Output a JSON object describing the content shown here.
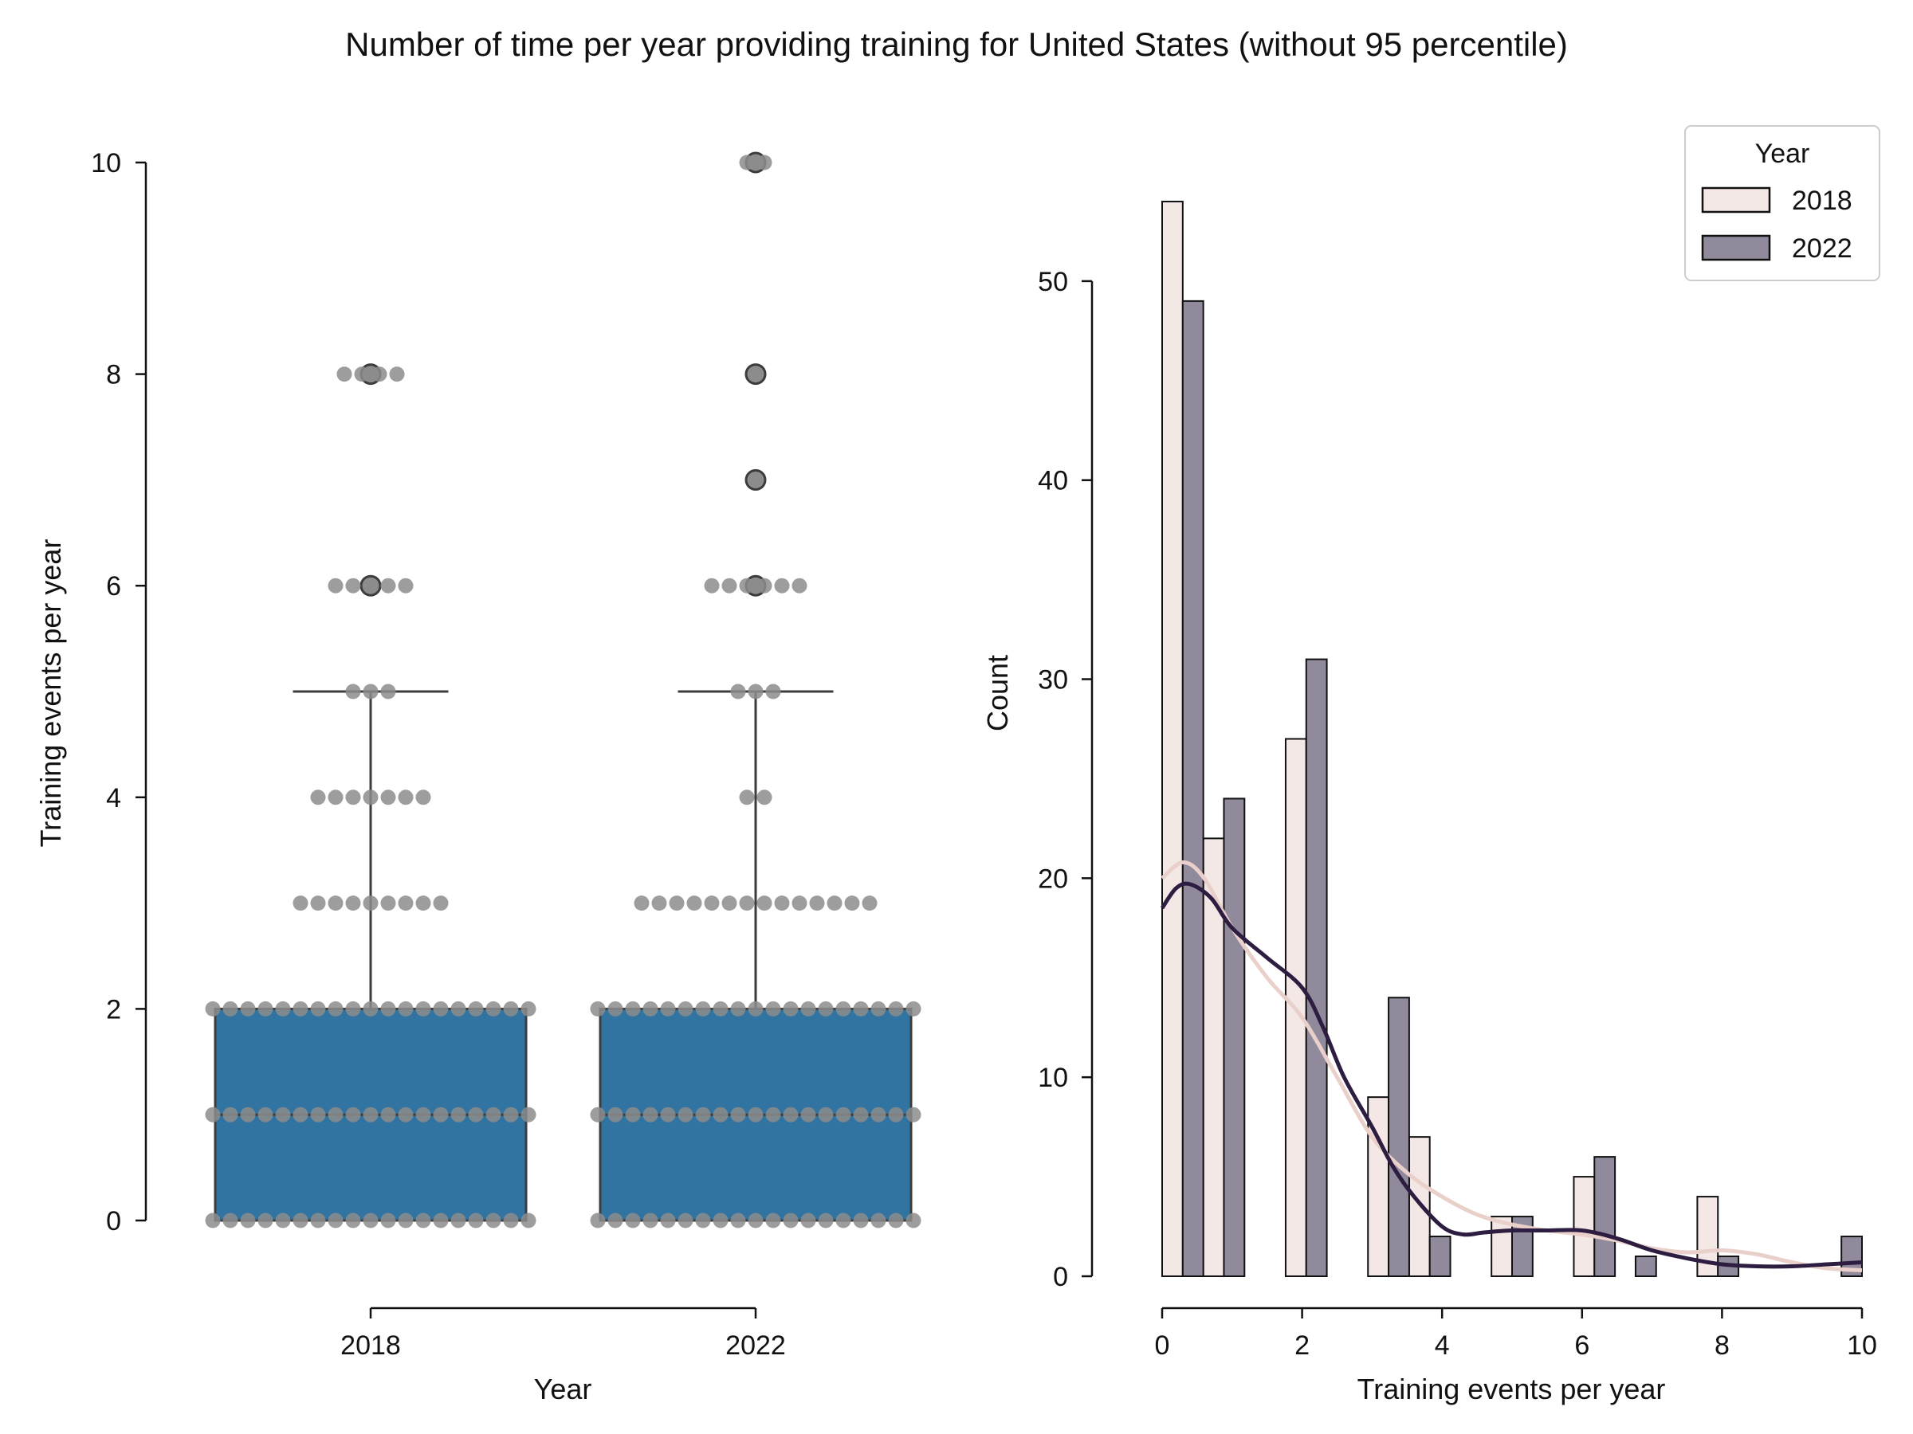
{
  "figure": {
    "title": "Number of time per year providing training for United States (without 95 percentile)"
  },
  "colors": {
    "box_fill": "#3274a1",
    "box_edge": "#3c3c3c",
    "swarm_point": "#8c8c8c",
    "outlier_fill": "#8c8c8c",
    "outlier_edge": "#3c3c3c",
    "hist_2018": "#f4e8e6",
    "hist_2022": "#918a9c",
    "kde_2018": "#ead0ca",
    "kde_2022": "#2d1d40",
    "axis": "#111111"
  },
  "chart_data": [
    {
      "type": "box",
      "xlabel": "Year",
      "ylabel": "Training events per year",
      "categories": [
        "2018",
        "2022"
      ],
      "ylim": [
        0,
        10
      ],
      "yticks": [
        "0",
        "2",
        "4",
        "6",
        "8",
        "10"
      ],
      "boxes": [
        {
          "category": "2018",
          "whislo": 0,
          "q1": 0,
          "median": 1,
          "q3": 2,
          "whishi": 5,
          "fliers": [
            6,
            8
          ]
        },
        {
          "category": "2022",
          "whislo": 0,
          "q1": 0,
          "median": 1,
          "q3": 2,
          "whishi": 5,
          "fliers": [
            6,
            7,
            8,
            10
          ]
        }
      ],
      "swarm": [
        {
          "category": "2018",
          "points": [
            {
              "y": 0,
              "count": 19
            },
            {
              "y": 1,
              "count": 19
            },
            {
              "y": 2,
              "count": 19
            },
            {
              "y": 3,
              "count": 9
            },
            {
              "y": 4,
              "count": 7
            },
            {
              "y": 5,
              "count": 3
            },
            {
              "y": 6,
              "count": 5
            },
            {
              "y": 8,
              "count": 4
            }
          ]
        },
        {
          "category": "2022",
          "points": [
            {
              "y": 0,
              "count": 19
            },
            {
              "y": 1,
              "count": 19
            },
            {
              "y": 2,
              "count": 19
            },
            {
              "y": 3,
              "count": 14
            },
            {
              "y": 4,
              "count": 2
            },
            {
              "y": 5,
              "count": 3
            },
            {
              "y": 6,
              "count": 6
            },
            {
              "y": 7,
              "count": 1
            },
            {
              "y": 8,
              "count": 1
            },
            {
              "y": 10,
              "count": 2
            }
          ]
        }
      ],
      "grid": false
    },
    {
      "type": "bar",
      "subtype": "histogram",
      "xlabel": "Training events per year",
      "ylabel": "Count",
      "xlim": [
        0,
        10
      ],
      "ylim": [
        0,
        56
      ],
      "xticks": [
        "0",
        "2",
        "4",
        "6",
        "8",
        "10"
      ],
      "yticks": [
        "0",
        "10",
        "20",
        "30",
        "40",
        "50"
      ],
      "bin_edges": [
        0,
        0.5882,
        1.1765,
        1.7647,
        2.3529,
        2.9412,
        3.5294,
        4.1176,
        4.7059,
        5.2941,
        5.8824,
        6.4706,
        7.0588,
        7.6471,
        8.2353,
        8.8235,
        9.4118,
        10
      ],
      "series": [
        {
          "name": "2018",
          "values": [
            54,
            22,
            0,
            27,
            0,
            9,
            7,
            0,
            3,
            0,
            5,
            0,
            0,
            4,
            0,
            0,
            0
          ]
        },
        {
          "name": "2022",
          "values": [
            49,
            24,
            0,
            31,
            0,
            14,
            2,
            0,
            3,
            0,
            6,
            1,
            0,
            1,
            0,
            0,
            2
          ]
        }
      ],
      "kde": [
        {
          "name": "2018",
          "x": [
            0,
            0.3,
            0.6,
            1,
            1.5,
            2,
            2.5,
            3,
            3.5,
            4,
            4.5,
            5,
            5.5,
            6,
            6.5,
            7,
            7.5,
            8,
            8.5,
            9,
            9.5,
            10
          ],
          "y": [
            20,
            20.8,
            20,
            17.5,
            15,
            13,
            10,
            7,
            5.2,
            4,
            3.1,
            2.6,
            2.3,
            2.1,
            1.8,
            1.4,
            1.2,
            1.3,
            1.1,
            0.7,
            0.4,
            0.3
          ]
        },
        {
          "name": "2022",
          "x": [
            0,
            0.2,
            0.4,
            0.7,
            1,
            1.5,
            2,
            2.3,
            2.6,
            3,
            3.3,
            3.6,
            4,
            4.3,
            4.6,
            5,
            5.5,
            6,
            6.5,
            7,
            7.5,
            8,
            8.5,
            9,
            9.5,
            10
          ],
          "y": [
            18.5,
            19.5,
            19.7,
            19,
            17.5,
            16,
            14.5,
            12.5,
            10,
            7.5,
            5.5,
            4,
            2.5,
            2.1,
            2.2,
            2.3,
            2.3,
            2.3,
            1.9,
            1.3,
            0.9,
            0.6,
            0.5,
            0.5,
            0.6,
            0.7
          ]
        }
      ],
      "legend": {
        "title": "Year",
        "position": "top-right",
        "entries": [
          "2018",
          "2022"
        ]
      },
      "grid": false
    }
  ]
}
